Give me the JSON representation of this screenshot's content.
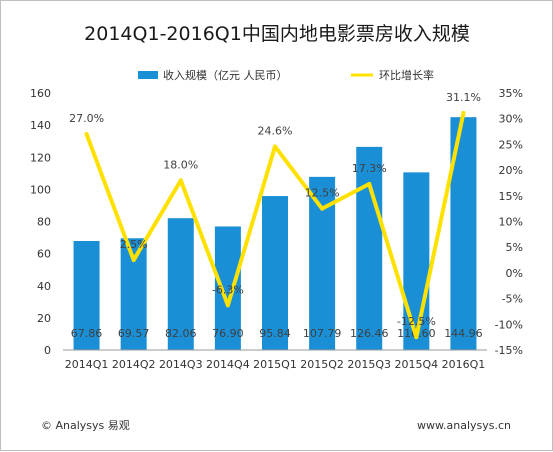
{
  "chart_data": {
    "type": "bar",
    "title": "2014Q1-2016Q1中国内地电影票房收入规模",
    "categories": [
      "2014Q1",
      "2014Q2",
      "2014Q3",
      "2014Q4",
      "2015Q1",
      "2015Q2",
      "2015Q3",
      "2015Q4",
      "2016Q1"
    ],
    "series": [
      {
        "name": "收入规模（亿元 人民币）",
        "kind": "bar",
        "axis": "left",
        "color": "#1a8fd6",
        "values": [
          67.86,
          69.57,
          82.06,
          76.9,
          95.84,
          107.79,
          126.46,
          110.6,
          144.96
        ],
        "labels": [
          "67.86",
          "69.57",
          "82.06",
          "76.90",
          "95.84",
          "107.79",
          "126.46",
          "110.60",
          "144.96"
        ]
      },
      {
        "name": "环比增长率",
        "kind": "line",
        "axis": "right",
        "color": "#ffe100",
        "values": [
          27.0,
          2.5,
          18.0,
          -6.3,
          24.6,
          12.5,
          17.3,
          -12.5,
          31.1
        ],
        "labels": [
          "27.0%",
          "2.5%",
          "18.0%",
          "-6.3%",
          "24.6%",
          "12.5%",
          "17.3%",
          "-12.5%",
          "31.1%"
        ]
      }
    ],
    "ylim_left": [
      0,
      160
    ],
    "yticks_left": [
      "0",
      "20",
      "40",
      "60",
      "80",
      "100",
      "120",
      "140",
      "160"
    ],
    "ylim_right": [
      -15,
      35
    ],
    "yticks_right": [
      "-15%",
      "-10%",
      "-5%",
      "0%",
      "5%",
      "10%",
      "15%",
      "20%",
      "25%",
      "30%",
      "35%"
    ],
    "legend_position": "top-center",
    "grid": false
  },
  "footer": {
    "left": "© Analysys 易观",
    "right": "www.analysys.cn"
  }
}
